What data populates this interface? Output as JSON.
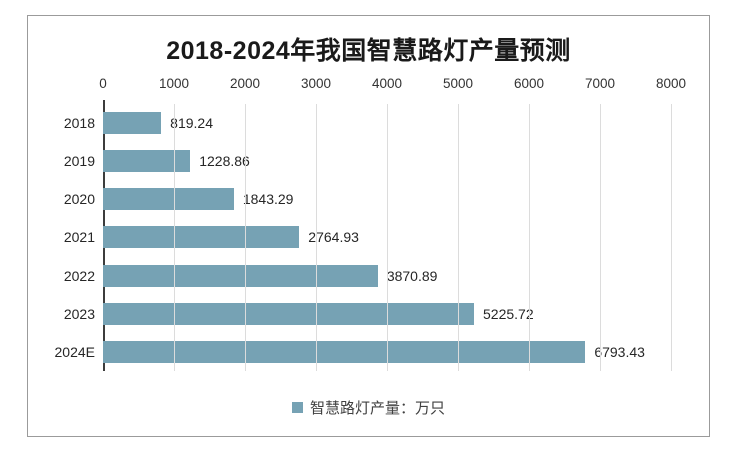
{
  "chart_data": {
    "type": "bar",
    "orientation": "horizontal",
    "title": "2018-2024年我国智慧路灯产量预测",
    "categories": [
      "2018",
      "2019",
      "2020",
      "2021",
      "2022",
      "2023",
      "2024E"
    ],
    "values": [
      819.24,
      1228.86,
      1843.29,
      2764.93,
      3870.89,
      5225.72,
      6793.43
    ],
    "value_labels": [
      "819.24",
      "1228.86",
      "1843.29",
      "2764.93",
      "3870.89",
      "5225.72",
      "6793.43"
    ],
    "x_ticks": [
      0,
      1000,
      2000,
      3000,
      4000,
      5000,
      6000,
      7000,
      8000
    ],
    "xlim": [
      0,
      8000
    ],
    "xlabel": "",
    "ylabel": "",
    "grid": true,
    "legend": [
      "智慧路灯产量：万只"
    ],
    "legend_position": "bottom",
    "colors": {
      "bar": "#76a2b4",
      "gridline": "#dcdcdc",
      "axis_line": "#3c3c3c",
      "border": "#9b9b9b",
      "title_text": "#1a1a1a",
      "label_text": "#262626"
    }
  }
}
